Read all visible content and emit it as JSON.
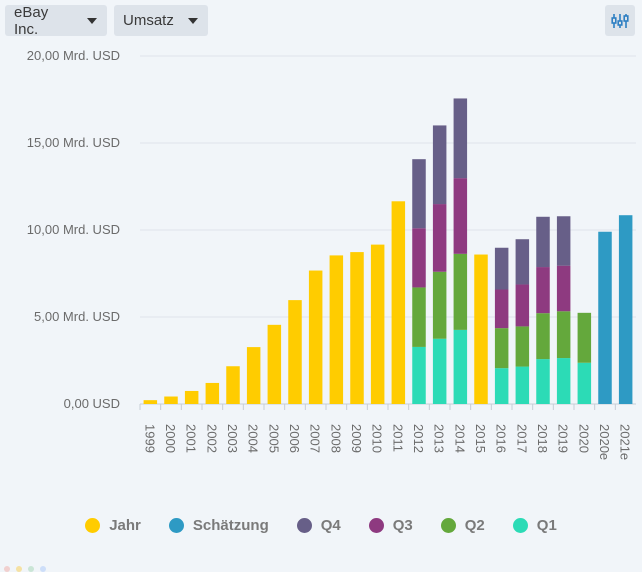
{
  "toolbar": {
    "company": "eBay Inc.",
    "metric": "Umsatz",
    "settings_icon": "chart-settings-icon"
  },
  "colors": {
    "jahr": "#ffcc00",
    "schaetzung": "#2e9ac4",
    "q4": "#675f88",
    "q3": "#8e3a80",
    "q2": "#64a83c",
    "q1": "#2cdbb6"
  },
  "legend": [
    {
      "key": "jahr",
      "label": "Jahr",
      "color": "#ffcc00"
    },
    {
      "key": "schaetzung",
      "label": "Schätzung",
      "color": "#2e9ac4"
    },
    {
      "key": "q4",
      "label": "Q4",
      "color": "#675f88"
    },
    {
      "key": "q3",
      "label": "Q3",
      "color": "#8e3a80"
    },
    {
      "key": "q2",
      "label": "Q2",
      "color": "#64a83c"
    },
    {
      "key": "q1",
      "label": "Q1",
      "color": "#2cdbb6"
    }
  ],
  "chart_data": {
    "type": "bar",
    "stacked": true,
    "ylim": [
      0,
      20
    ],
    "yticks": [
      "0,00 USD",
      "5,00 Mrd. USD",
      "10,00 Mrd. USD",
      "15,00 Mrd. USD",
      "20,00 Mrd. USD"
    ],
    "ytick_values": [
      0,
      5,
      10,
      15,
      20
    ],
    "grid": true,
    "legend_position": "bottom",
    "categories": [
      "1999",
      "2000",
      "2001",
      "2002",
      "2003",
      "2004",
      "2005",
      "2006",
      "2007",
      "2008",
      "2009",
      "2010",
      "2011",
      "2012",
      "2013",
      "2014",
      "2015",
      "2016",
      "2017",
      "2018",
      "2019",
      "2020",
      "2020e",
      "2021e"
    ],
    "series": [
      {
        "name": "Jahr",
        "values": [
          0.22,
          0.43,
          0.75,
          1.21,
          2.17,
          3.27,
          4.55,
          5.97,
          7.67,
          8.54,
          8.73,
          9.16,
          11.65,
          null,
          null,
          null,
          8.59,
          null,
          null,
          null,
          null,
          null,
          null,
          null
        ]
      },
      {
        "name": "Q1",
        "values": [
          null,
          null,
          null,
          null,
          null,
          null,
          null,
          null,
          null,
          null,
          null,
          null,
          null,
          3.28,
          3.75,
          4.26,
          null,
          2.06,
          2.15,
          2.58,
          2.64,
          2.37,
          null,
          null
        ]
      },
      {
        "name": "Q2",
        "values": [
          null,
          null,
          null,
          null,
          null,
          null,
          null,
          null,
          null,
          null,
          null,
          null,
          null,
          3.42,
          3.85,
          4.37,
          null,
          2.3,
          2.31,
          2.64,
          2.69,
          2.87,
          null,
          null
        ]
      },
      {
        "name": "Q3",
        "values": [
          null,
          null,
          null,
          null,
          null,
          null,
          null,
          null,
          null,
          null,
          null,
          null,
          null,
          3.4,
          3.89,
          4.35,
          null,
          2.22,
          2.41,
          2.65,
          2.62,
          null,
          null,
          null
        ]
      },
      {
        "name": "Q4",
        "values": [
          null,
          null,
          null,
          null,
          null,
          null,
          null,
          null,
          null,
          null,
          null,
          null,
          null,
          3.97,
          4.52,
          4.58,
          null,
          2.4,
          2.6,
          2.89,
          2.84,
          null,
          null,
          null
        ]
      },
      {
        "name": "Schätzung",
        "values": [
          null,
          null,
          null,
          null,
          null,
          null,
          null,
          null,
          null,
          null,
          null,
          null,
          null,
          null,
          null,
          null,
          null,
          null,
          null,
          null,
          null,
          null,
          9.9,
          10.85
        ]
      }
    ]
  }
}
